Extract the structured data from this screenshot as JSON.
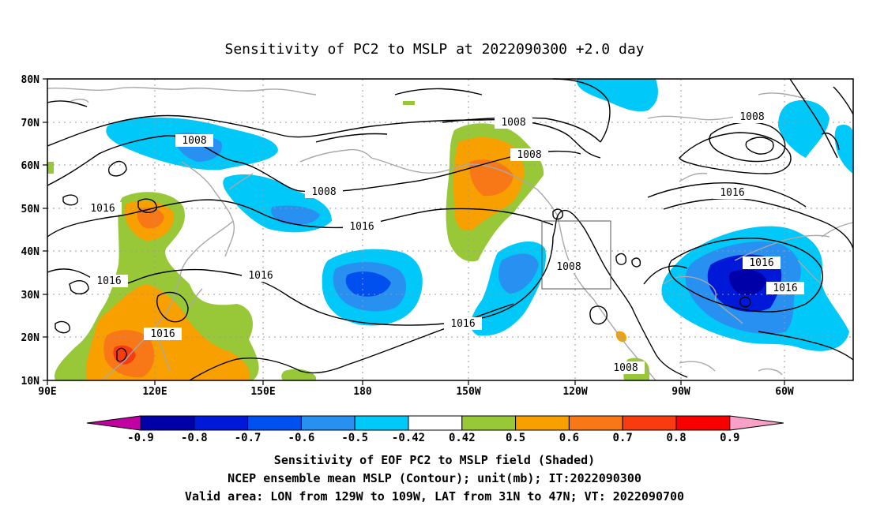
{
  "title": "Sensitivity of PC2 to MSLP at 2022090300 +2.0 day",
  "map": {
    "lon_ticks": [
      "90E",
      "120E",
      "150E",
      "180",
      "150W",
      "120W",
      "90W",
      "60W"
    ],
    "lat_ticks": [
      "80N",
      "70N",
      "60N",
      "50N",
      "40N",
      "30N",
      "20N",
      "10N"
    ],
    "grid": true,
    "valid_box": {
      "lon_from": "129W",
      "lon_to": "109W",
      "lat_from": "31N",
      "lat_to": "47N"
    },
    "contour_labels": [
      "1008",
      "1008",
      "1008",
      "1008",
      "1016",
      "1016",
      "1016",
      "1016",
      "1016",
      "1016",
      "1008",
      "1016",
      "1016",
      "1008",
      "1016",
      "1008"
    ]
  },
  "colorbar": {
    "labels": [
      "-0.9",
      "-0.8",
      "-0.7",
      "-0.6",
      "-0.5",
      "-0.42",
      "0.42",
      "0.5",
      "0.6",
      "0.7",
      "0.8",
      "0.9"
    ],
    "colors": [
      "#c000a0",
      "#0000a8",
      "#0018d8",
      "#0050f0",
      "#2890f0",
      "#00c8f8",
      "#ffffff",
      "#98c838",
      "#f8a000",
      "#f87818",
      "#f83c10",
      "#f80000",
      "#f8a0c8"
    ]
  },
  "footer": {
    "line1": "Sensitivity of EOF PC2 to MSLP field (Shaded)",
    "line2": "NCEP ensemble mean MSLP (Contour); unit(mb); IT:2022090300",
    "line3": "Valid area: LON from 129W to 109W, LAT from 31N to 47N; VT: 2022090700"
  }
}
